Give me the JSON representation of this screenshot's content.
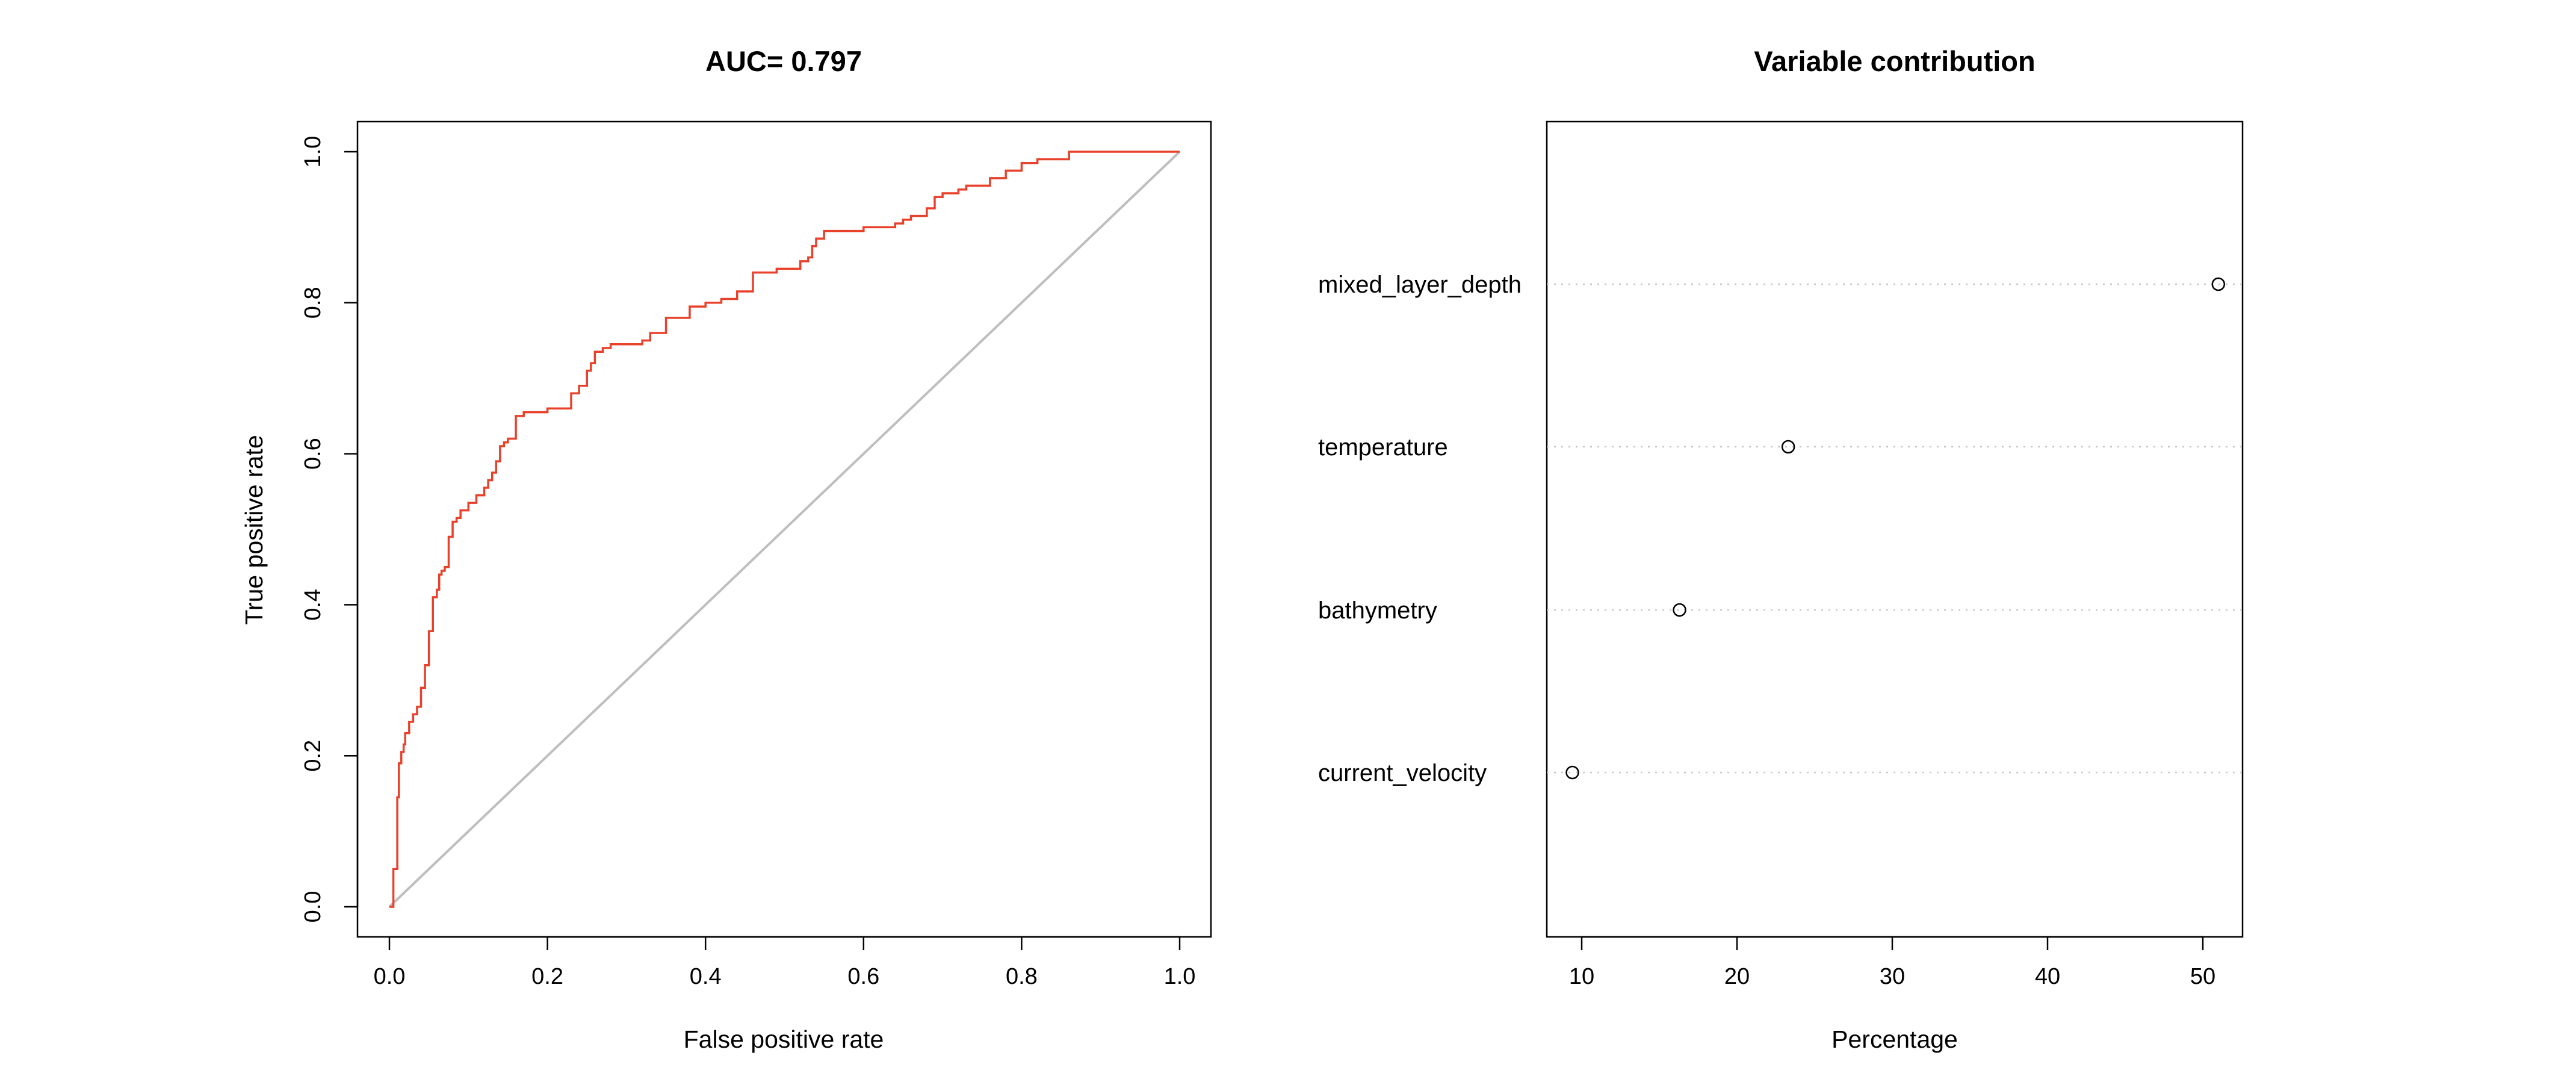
{
  "colors": {
    "roc_line": "#e8402a",
    "diagonal": "#bebebe",
    "grid": "#c8c8c8",
    "axis": "#000000"
  },
  "chart_data": [
    {
      "type": "line",
      "title": "AUC= 0.797",
      "xlabel": "False positive rate",
      "ylabel": "True positive rate",
      "xlim": [
        0,
        1
      ],
      "ylim": [
        0,
        1
      ],
      "x_ticks": [
        0.0,
        0.2,
        0.4,
        0.6,
        0.8,
        1.0
      ],
      "x_tick_labels": [
        "0.0",
        "0.2",
        "0.4",
        "0.6",
        "0.8",
        "1.0"
      ],
      "y_ticks": [
        0.0,
        0.2,
        0.4,
        0.6,
        0.8,
        1.0
      ],
      "y_tick_labels": [
        "0.0",
        "0.2",
        "0.4",
        "0.6",
        "0.8",
        "1.0"
      ],
      "grid": false,
      "series": [
        {
          "step": true,
          "color": "#e8402a",
          "x": [
            0.0,
            0.005,
            0.01,
            0.012,
            0.015,
            0.018,
            0.02,
            0.025,
            0.03,
            0.035,
            0.04,
            0.045,
            0.05,
            0.055,
            0.06,
            0.063,
            0.066,
            0.07,
            0.075,
            0.08,
            0.085,
            0.09,
            0.1,
            0.11,
            0.12,
            0.125,
            0.13,
            0.135,
            0.14,
            0.145,
            0.15,
            0.16,
            0.17,
            0.2,
            0.23,
            0.24,
            0.25,
            0.255,
            0.26,
            0.27,
            0.28,
            0.32,
            0.33,
            0.35,
            0.38,
            0.4,
            0.42,
            0.44,
            0.46,
            0.49,
            0.52,
            0.53,
            0.535,
            0.54,
            0.55,
            0.6,
            0.64,
            0.65,
            0.66,
            0.68,
            0.69,
            0.7,
            0.72,
            0.73,
            0.76,
            0.78,
            0.8,
            0.82,
            0.86,
            0.88,
            1.0
          ],
          "y": [
            0.0,
            0.05,
            0.145,
            0.19,
            0.205,
            0.215,
            0.23,
            0.245,
            0.255,
            0.265,
            0.29,
            0.32,
            0.365,
            0.41,
            0.42,
            0.44,
            0.445,
            0.45,
            0.49,
            0.51,
            0.515,
            0.525,
            0.535,
            0.545,
            0.555,
            0.565,
            0.575,
            0.59,
            0.61,
            0.615,
            0.62,
            0.65,
            0.655,
            0.66,
            0.68,
            0.69,
            0.71,
            0.72,
            0.735,
            0.74,
            0.745,
            0.75,
            0.76,
            0.78,
            0.795,
            0.8,
            0.805,
            0.815,
            0.84,
            0.845,
            0.855,
            0.86,
            0.875,
            0.885,
            0.895,
            0.9,
            0.905,
            0.91,
            0.915,
            0.925,
            0.94,
            0.945,
            0.95,
            0.955,
            0.965,
            0.975,
            0.985,
            0.99,
            1.0,
            1.0,
            1.0
          ]
        },
        {
          "color": "#bebebe",
          "x": [
            0.0,
            1.0
          ],
          "y": [
            0.0,
            1.0
          ]
        }
      ]
    },
    {
      "type": "scatter",
      "title": "Variable contribution",
      "xlabel": "Percentage",
      "ylabel": "",
      "xlim": [
        7.9,
        52.5
      ],
      "x_ticks": [
        10,
        20,
        30,
        40,
        50
      ],
      "x_tick_labels": [
        "10",
        "20",
        "30",
        "40",
        "50"
      ],
      "grid": true,
      "categories": [
        "mixed_layer_depth",
        "temperature",
        "bathymetry",
        "current_velocity"
      ],
      "values": [
        51.0,
        23.3,
        16.3,
        9.4
      ]
    }
  ]
}
